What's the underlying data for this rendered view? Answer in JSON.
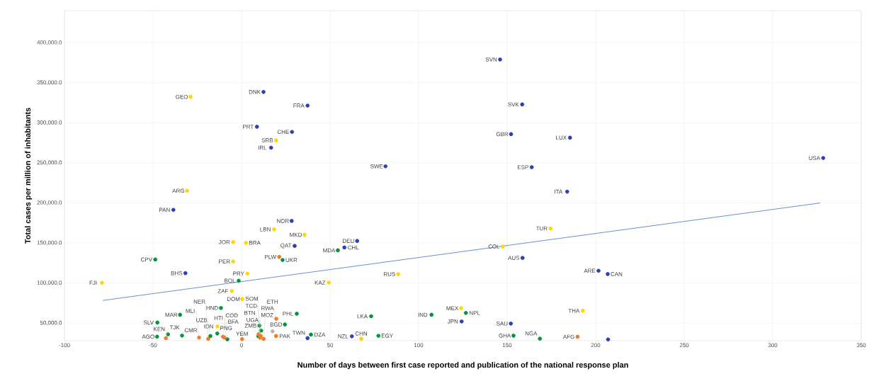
{
  "chart_data": {
    "type": "scatter",
    "xlabel": "Number of days between first case reported and publication of the national response plan",
    "ylabel": "Total cases per million of inhabitants",
    "xlim": [
      -100,
      350
    ],
    "xticks": [
      -100,
      -50,
      0,
      50,
      100,
      150,
      200,
      250,
      300,
      350
    ],
    "ylim": [
      28000,
      440000
    ],
    "yticks": [
      {
        "value": 50000,
        "label": "50,000.0"
      },
      {
        "value": 100000,
        "label": "100,000.0"
      },
      {
        "value": 150000,
        "label": "150,000.0"
      },
      {
        "value": 200000,
        "label": "200,000.0"
      },
      {
        "value": 250000,
        "label": "250,000.0"
      },
      {
        "value": 300000,
        "label": "300,000.0"
      },
      {
        "value": 350000,
        "label": "350,000.0"
      },
      {
        "value": 400000,
        "label": "400,000.0"
      }
    ],
    "grid": true,
    "series": [
      {
        "marker": "circle",
        "color": "#2f3fb0",
        "x": [
          146,
          12.4,
          37.3,
          8.7,
          28.5,
          16.7,
          81.3,
          158.5,
          152.2,
          185.5,
          163.9,
          183.9,
          328.5,
          -38.5,
          28.3,
          30,
          65.3,
          58.1,
          -31.7,
          158.7,
          201.6,
          206.8,
          124.3,
          152.1,
          62.3,
          37.3,
          207
        ],
        "values": [
          379000,
          338500,
          321500,
          295100,
          288600,
          268900,
          245700,
          322900,
          285800,
          281400,
          244500,
          214000,
          256000,
          191300,
          177500,
          146300,
          152500,
          144300,
          112300,
          131300,
          115300,
          111200,
          52000,
          49400,
          33500,
          31200,
          29500
        ]
      },
      {
        "marker": "circle",
        "color": "#ffd700",
        "x": [
          -28.8,
          19.5,
          -30.7,
          18.4,
          35.6,
          -4.7,
          2.5,
          -4.7,
          3.3,
          -78.8,
          -5.5,
          0.4,
          -13.6,
          49.3,
          88.5,
          147.5,
          174.5,
          124,
          192.7,
          67.6
        ],
        "values": [
          332400,
          278100,
          215100,
          167000,
          160200,
          151100,
          150200,
          126900,
          111700,
          100200,
          90000,
          80000,
          45800,
          100500,
          111100,
          145500,
          168100,
          68500,
          65400,
          30300
        ]
      },
      {
        "marker": "circle",
        "color": "#00953a",
        "x": [
          -48.7,
          23.2,
          54.4,
          -1.6,
          -11.6,
          -34.7,
          -47.5,
          31.2,
          24.5,
          10.1,
          11.1,
          73.2,
          107.3,
          126.7,
          39.2,
          77.3,
          153.6,
          168.5,
          -41.5,
          -47.7,
          -33.6,
          -17.6,
          -13.7,
          -8,
          9.5
        ],
        "values": [
          129300,
          128700,
          140800,
          102900,
          68800,
          60300,
          50600,
          61700,
          48200,
          46700,
          40600,
          58500,
          60300,
          62600,
          35600,
          34100,
          34300,
          30500,
          35900,
          33000,
          34400,
          33800,
          37000,
          29700,
          33500
        ]
      },
      {
        "marker": "circle",
        "color": "#f47a20",
        "x": [
          21.3,
          19.6,
          -42.7,
          -24,
          -18.8,
          -9.7,
          -10.5,
          0.3,
          9.6,
          10.5,
          12.5,
          19.5,
          10.8,
          189.8
        ],
        "values": [
          132600,
          55300,
          31200,
          32000,
          30300,
          31800,
          33000,
          30000,
          36200,
          31800,
          30300,
          33800,
          34000,
          32900
        ]
      },
      {
        "marker": "circle",
        "color": "#b4b4b4",
        "x": [
          17.5
        ],
        "values": [
          39700
        ]
      },
      {
        "type": "line",
        "marker": "none",
        "color": "#4472c4",
        "x": [
          -78.4,
          326.8
        ],
        "values": [
          78200,
          199900
        ]
      }
    ],
    "annotations": [
      {
        "text": "SVN",
        "x": 146,
        "y": 379000
      },
      {
        "text": "DNK",
        "x": 12.4,
        "y": 338500
      },
      {
        "text": "FRA",
        "x": 37.3,
        "y": 321500
      },
      {
        "text": "PRT",
        "x": 8.7,
        "y": 295100
      },
      {
        "text": "CHE",
        "x": 28.5,
        "y": 288600
      },
      {
        "text": "IRL",
        "x": 16.7,
        "y": 268900
      },
      {
        "text": "SWE",
        "x": 81.3,
        "y": 245700
      },
      {
        "text": "SVK",
        "x": 158.5,
        "y": 322900
      },
      {
        "text": "GBR",
        "x": 152.2,
        "y": 285800
      },
      {
        "text": "LUX",
        "x": 185.5,
        "y": 281400
      },
      {
        "text": "ESP",
        "x": 163.9,
        "y": 244500
      },
      {
        "text": "ITA",
        "x": 183.9,
        "y": 214000
      },
      {
        "text": "USA",
        "x": 328.5,
        "y": 256000
      },
      {
        "text": "PAN",
        "x": -38.5,
        "y": 191300
      },
      {
        "text": "NOR",
        "x": 28.3,
        "y": 177500
      },
      {
        "text": "QAT",
        "x": 30,
        "y": 146300
      },
      {
        "text": "DEU",
        "x": 65.3,
        "y": 152500
      },
      {
        "text": "CHL",
        "x": 58.1,
        "y": 144300
      },
      {
        "text": "BHS",
        "x": -31.7,
        "y": 112300
      },
      {
        "text": "AUS",
        "x": 158.7,
        "y": 131300
      },
      {
        "text": "ARE",
        "x": 201.6,
        "y": 115300
      },
      {
        "text": "CAN",
        "x": 206.8,
        "y": 111200
      },
      {
        "text": "JPN",
        "x": 124.3,
        "y": 52000
      },
      {
        "text": "SAU",
        "x": 152.1,
        "y": 49400
      },
      {
        "text": "NZL",
        "x": 62.3,
        "y": 33500
      },
      {
        "text": "TWN",
        "x": 37.3,
        "y": 31200
      },
      {
        "text": "GEO",
        "x": -28.8,
        "y": 332400
      },
      {
        "text": "SRB",
        "x": 19.5,
        "y": 278100
      },
      {
        "text": "ARG",
        "x": -30.7,
        "y": 215100
      },
      {
        "text": "LBN",
        "x": 18.4,
        "y": 167000
      },
      {
        "text": "MKD",
        "x": 35.6,
        "y": 160200
      },
      {
        "text": "JOR",
        "x": -4.7,
        "y": 151100
      },
      {
        "text": "BRA",
        "x": 2.5,
        "y": 150200
      },
      {
        "text": "PER",
        "x": -4.7,
        "y": 126900
      },
      {
        "text": "PRY",
        "x": 3.3,
        "y": 111700
      },
      {
        "text": "FJI",
        "x": -78.8,
        "y": 100200
      },
      {
        "text": "ZAF",
        "x": -5.5,
        "y": 90000
      },
      {
        "text": "DOM",
        "x": 0.4,
        "y": 80000
      },
      {
        "text": "IDN",
        "x": -13.6,
        "y": 45800
      },
      {
        "text": "KAZ",
        "x": 49.3,
        "y": 100500
      },
      {
        "text": "RUS",
        "x": 88.5,
        "y": 111100
      },
      {
        "text": "COL",
        "x": 147.5,
        "y": 145500
      },
      {
        "text": "TUR",
        "x": 174.5,
        "y": 168100
      },
      {
        "text": "MEX",
        "x": 124,
        "y": 68500
      },
      {
        "text": "THA",
        "x": 192.7,
        "y": 65400
      },
      {
        "text": "CHN",
        "x": 67.6,
        "y": 30300
      },
      {
        "text": "CPV",
        "x": -48.7,
        "y": 129300
      },
      {
        "text": "UKR",
        "x": 23.2,
        "y": 128700
      },
      {
        "text": "MDA",
        "x": 54.4,
        "y": 140800
      },
      {
        "text": "BOL",
        "x": -1.6,
        "y": 102900
      },
      {
        "text": "HND",
        "x": -11.6,
        "y": 68800
      },
      {
        "text": "MAR",
        "x": -34.7,
        "y": 60300
      },
      {
        "text": "SLV",
        "x": -47.5,
        "y": 50600
      },
      {
        "text": "PHL",
        "x": 31.2,
        "y": 61700
      },
      {
        "text": "BGD",
        "x": 24.5,
        "y": 48200
      },
      {
        "text": "ZMB",
        "x": 10.1,
        "y": 46700
      },
      {
        "text": "UGA",
        "x": 11.1,
        "y": 40600
      },
      {
        "text": "LKA",
        "x": 73.2,
        "y": 58500
      },
      {
        "text": "IND",
        "x": 107.3,
        "y": 60300
      },
      {
        "text": "NPL",
        "x": 126.7,
        "y": 62600
      },
      {
        "text": "DZA",
        "x": 39.2,
        "y": 35600
      },
      {
        "text": "EGY",
        "x": 77.3,
        "y": 34100
      },
      {
        "text": "GHA",
        "x": 153.6,
        "y": 34300
      },
      {
        "text": "NGA",
        "x": 168.5,
        "y": 30500
      },
      {
        "text": "KEN",
        "x": -41.5,
        "y": 35900
      },
      {
        "text": "AGO",
        "x": -47.7,
        "y": 33000
      },
      {
        "text": "CMR",
        "x": -33.6,
        "y": 34400
      },
      {
        "text": "UZB",
        "x": -17.6,
        "y": 33800
      },
      {
        "text": "PNG",
        "x": -13.7,
        "y": 37000
      },
      {
        "text": "HTI",
        "x": -8,
        "y": 29700
      },
      {
        "text": "MOZ",
        "x": 9.5,
        "y": 33500
      },
      {
        "text": "PLW",
        "x": 21.3,
        "y": 132600
      },
      {
        "text": "RWA",
        "x": 19.6,
        "y": 55300
      },
      {
        "text": "TJK",
        "x": -42.7,
        "y": 31200
      },
      {
        "text": "MLI",
        "x": -24,
        "y": 32000
      },
      {
        "text": "NER",
        "x": -18.8,
        "y": 30300
      },
      {
        "text": "BFA",
        "x": -9.7,
        "y": 31800
      },
      {
        "text": "COD",
        "x": -10.5,
        "y": 33000
      },
      {
        "text": "YEM",
        "x": 0.3,
        "y": 30000
      },
      {
        "text": "BTN",
        "x": 9.6,
        "y": 36200
      },
      {
        "text": "TCD",
        "x": 10.5,
        "y": 31800
      },
      {
        "text": "ETH",
        "x": 12.5,
        "y": 30300
      },
      {
        "text": "PAK",
        "x": 19.5,
        "y": 33800
      },
      {
        "text": "SOM",
        "x": 10.8,
        "y": 34000
      },
      {
        "text": "AFG",
        "x": 189.8,
        "y": 32900
      }
    ]
  }
}
